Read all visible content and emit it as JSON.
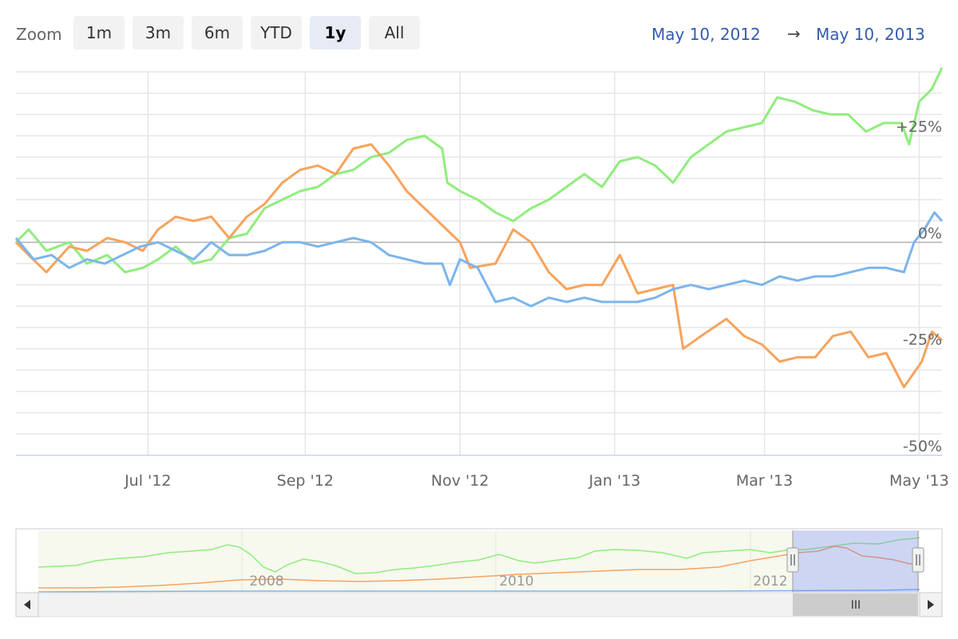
{
  "range_selector": {
    "zoom_label": "Zoom",
    "buttons": [
      "1m",
      "3m",
      "6m",
      "YTD",
      "1y",
      "All"
    ],
    "selected": "1y",
    "from_date": "May 10, 2012",
    "arrow": "→",
    "to_date": "May 10, 2013"
  },
  "colors": {
    "green": "#90ed7d",
    "orange": "#f7a35c",
    "blue": "#7cb5ec",
    "accent": "#335cad"
  },
  "chart_data": {
    "type": "line",
    "title": "",
    "xlabel": "",
    "ylabel": "",
    "y_unit": "%",
    "x_range": [
      "2012-05-10",
      "2013-05-10"
    ],
    "ylim": [
      -50,
      40
    ],
    "grid": true,
    "x_ticks": [
      {
        "date": "2012-07-01",
        "label": "Jul '12"
      },
      {
        "date": "2012-09-01",
        "label": "Sep '12"
      },
      {
        "date": "2012-11-01",
        "label": "Nov '12"
      },
      {
        "date": "2013-01-01",
        "label": "Jan '13"
      },
      {
        "date": "2013-03-01",
        "label": "Mar '13"
      },
      {
        "date": "2013-05-01",
        "label": "May '13"
      }
    ],
    "y_ticks": [
      {
        "value": 25,
        "label": "+25%"
      },
      {
        "value": 0,
        "label": "0%"
      },
      {
        "value": -25,
        "label": "-25%"
      },
      {
        "value": -50,
        "label": "-50%"
      }
    ],
    "series": [
      {
        "color": "#90ed7d",
        "points": [
          [
            "2012-05-10",
            0
          ],
          [
            "2012-05-15",
            3
          ],
          [
            "2012-05-22",
            -2
          ],
          [
            "2012-05-31",
            0
          ],
          [
            "2012-06-07",
            -5
          ],
          [
            "2012-06-15",
            -3
          ],
          [
            "2012-06-22",
            -7
          ],
          [
            "2012-06-29",
            -6
          ],
          [
            "2012-07-05",
            -4
          ],
          [
            "2012-07-12",
            -1
          ],
          [
            "2012-07-19",
            -5
          ],
          [
            "2012-07-26",
            -4
          ],
          [
            "2012-08-02",
            1
          ],
          [
            "2012-08-09",
            2
          ],
          [
            "2012-08-16",
            8
          ],
          [
            "2012-08-23",
            10
          ],
          [
            "2012-08-30",
            12
          ],
          [
            "2012-09-06",
            13
          ],
          [
            "2012-09-13",
            16
          ],
          [
            "2012-09-20",
            17
          ],
          [
            "2012-09-27",
            20
          ],
          [
            "2012-10-04",
            21
          ],
          [
            "2012-10-11",
            24
          ],
          [
            "2012-10-18",
            25
          ],
          [
            "2012-10-25",
            22
          ],
          [
            "2012-10-27",
            14
          ],
          [
            "2012-11-01",
            12
          ],
          [
            "2012-11-08",
            10
          ],
          [
            "2012-11-15",
            7
          ],
          [
            "2012-11-22",
            5
          ],
          [
            "2012-11-29",
            8
          ],
          [
            "2012-12-06",
            10
          ],
          [
            "2012-12-13",
            13
          ],
          [
            "2012-12-20",
            16
          ],
          [
            "2012-12-27",
            13
          ],
          [
            "2013-01-03",
            19
          ],
          [
            "2013-01-10",
            20
          ],
          [
            "2013-01-17",
            18
          ],
          [
            "2013-01-24",
            14
          ],
          [
            "2013-01-31",
            20
          ],
          [
            "2013-02-07",
            23
          ],
          [
            "2013-02-14",
            26
          ],
          [
            "2013-02-21",
            27
          ],
          [
            "2013-02-28",
            28
          ],
          [
            "2013-03-06",
            34
          ],
          [
            "2013-03-13",
            33
          ],
          [
            "2013-03-20",
            31
          ],
          [
            "2013-03-27",
            30
          ],
          [
            "2013-04-03",
            30
          ],
          [
            "2013-04-10",
            26
          ],
          [
            "2013-04-17",
            28
          ],
          [
            "2013-04-24",
            28
          ],
          [
            "2013-04-27",
            23
          ],
          [
            "2013-05-01",
            33
          ],
          [
            "2013-05-06",
            36
          ],
          [
            "2013-05-10",
            41
          ]
        ]
      },
      {
        "color": "#f7a35c",
        "points": [
          [
            "2012-05-10",
            0
          ],
          [
            "2012-05-15",
            -3
          ],
          [
            "2012-05-22",
            -7
          ],
          [
            "2012-05-31",
            -1
          ],
          [
            "2012-06-07",
            -2
          ],
          [
            "2012-06-15",
            1
          ],
          [
            "2012-06-22",
            0
          ],
          [
            "2012-06-29",
            -2
          ],
          [
            "2012-07-05",
            3
          ],
          [
            "2012-07-12",
            6
          ],
          [
            "2012-07-19",
            5
          ],
          [
            "2012-07-26",
            6
          ],
          [
            "2012-08-02",
            1
          ],
          [
            "2012-08-09",
            6
          ],
          [
            "2012-08-16",
            9
          ],
          [
            "2012-08-23",
            14
          ],
          [
            "2012-08-30",
            17
          ],
          [
            "2012-09-06",
            18
          ],
          [
            "2012-09-13",
            16
          ],
          [
            "2012-09-20",
            22
          ],
          [
            "2012-09-27",
            23
          ],
          [
            "2012-10-04",
            18
          ],
          [
            "2012-10-11",
            12
          ],
          [
            "2012-10-18",
            8
          ],
          [
            "2012-10-25",
            4
          ],
          [
            "2012-11-01",
            0
          ],
          [
            "2012-11-05",
            -6
          ],
          [
            "2012-11-15",
            -5
          ],
          [
            "2012-11-22",
            3
          ],
          [
            "2012-11-29",
            0
          ],
          [
            "2012-12-06",
            -7
          ],
          [
            "2012-12-13",
            -11
          ],
          [
            "2012-12-20",
            -10
          ],
          [
            "2012-12-27",
            -10
          ],
          [
            "2013-01-03",
            -3
          ],
          [
            "2013-01-10",
            -12
          ],
          [
            "2013-01-17",
            -11
          ],
          [
            "2013-01-24",
            -10
          ],
          [
            "2013-01-28",
            -25
          ],
          [
            "2013-02-04",
            -22
          ],
          [
            "2013-02-14",
            -18
          ],
          [
            "2013-02-21",
            -22
          ],
          [
            "2013-02-28",
            -24
          ],
          [
            "2013-03-07",
            -28
          ],
          [
            "2013-03-14",
            -27
          ],
          [
            "2013-03-21",
            -27
          ],
          [
            "2013-03-28",
            -22
          ],
          [
            "2013-04-04",
            -21
          ],
          [
            "2013-04-11",
            -27
          ],
          [
            "2013-04-18",
            -26
          ],
          [
            "2013-04-25",
            -34
          ],
          [
            "2013-05-02",
            -28
          ],
          [
            "2013-05-06",
            -21
          ],
          [
            "2013-05-10",
            -23
          ]
        ]
      },
      {
        "color": "#7cb5ec",
        "points": [
          [
            "2012-05-10",
            1
          ],
          [
            "2012-05-17",
            -4
          ],
          [
            "2012-05-24",
            -3
          ],
          [
            "2012-05-31",
            -6
          ],
          [
            "2012-06-07",
            -4
          ],
          [
            "2012-06-14",
            -5
          ],
          [
            "2012-06-21",
            -3
          ],
          [
            "2012-06-28",
            -1
          ],
          [
            "2012-07-05",
            0
          ],
          [
            "2012-07-12",
            -2
          ],
          [
            "2012-07-19",
            -4
          ],
          [
            "2012-07-26",
            0
          ],
          [
            "2012-08-02",
            -3
          ],
          [
            "2012-08-09",
            -3
          ],
          [
            "2012-08-16",
            -2
          ],
          [
            "2012-08-23",
            0
          ],
          [
            "2012-08-30",
            0
          ],
          [
            "2012-09-06",
            -1
          ],
          [
            "2012-09-13",
            0
          ],
          [
            "2012-09-20",
            1
          ],
          [
            "2012-09-27",
            0
          ],
          [
            "2012-10-04",
            -3
          ],
          [
            "2012-10-11",
            -4
          ],
          [
            "2012-10-18",
            -5
          ],
          [
            "2012-10-25",
            -5
          ],
          [
            "2012-10-28",
            -10
          ],
          [
            "2012-11-01",
            -4
          ],
          [
            "2012-11-08",
            -6
          ],
          [
            "2012-11-15",
            -14
          ],
          [
            "2012-11-22",
            -13
          ],
          [
            "2012-11-29",
            -15
          ],
          [
            "2012-12-06",
            -13
          ],
          [
            "2012-12-13",
            -14
          ],
          [
            "2012-12-20",
            -13
          ],
          [
            "2012-12-27",
            -14
          ],
          [
            "2013-01-03",
            -14
          ],
          [
            "2013-01-10",
            -14
          ],
          [
            "2013-01-17",
            -13
          ],
          [
            "2013-01-24",
            -11
          ],
          [
            "2013-01-31",
            -10
          ],
          [
            "2013-02-07",
            -11
          ],
          [
            "2013-02-14",
            -10
          ],
          [
            "2013-02-21",
            -9
          ],
          [
            "2013-02-28",
            -10
          ],
          [
            "2013-03-07",
            -8
          ],
          [
            "2013-03-14",
            -9
          ],
          [
            "2013-03-21",
            -8
          ],
          [
            "2013-03-28",
            -8
          ],
          [
            "2013-04-04",
            -7
          ],
          [
            "2013-04-11",
            -6
          ],
          [
            "2013-04-18",
            -6
          ],
          [
            "2013-04-25",
            -7
          ],
          [
            "2013-04-29",
            0
          ],
          [
            "2013-05-03",
            3
          ],
          [
            "2013-05-07",
            7
          ],
          [
            "2013-05-10",
            5
          ]
        ]
      }
    ]
  },
  "navigator": {
    "year_labels": [
      "2008",
      "2010",
      "2012"
    ],
    "scrollbar_grip": "III"
  }
}
